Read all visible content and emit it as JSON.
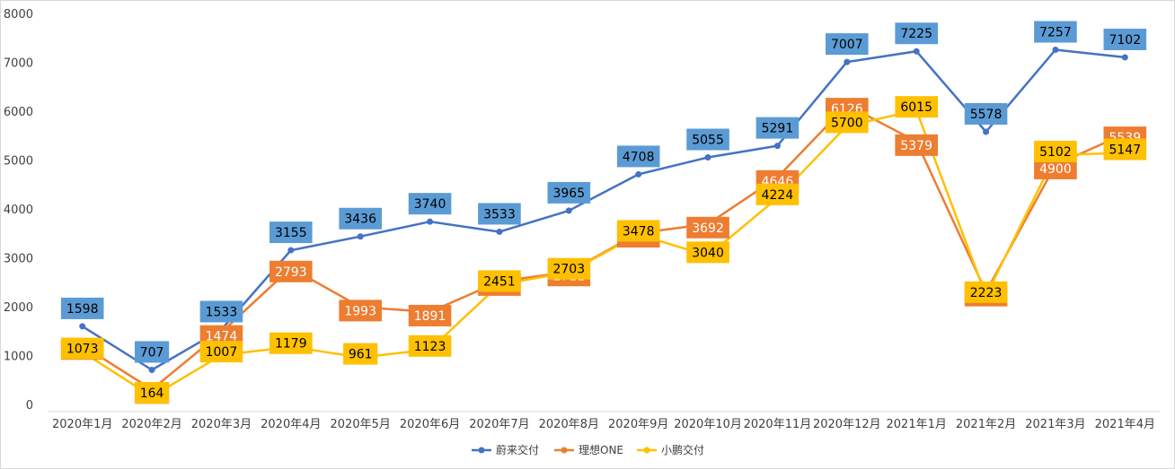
{
  "chart_data": {
    "type": "line",
    "title": "",
    "xlabel": "",
    "ylabel": "",
    "ylim": [
      0,
      8000
    ],
    "yticks": [
      0,
      1000,
      2000,
      3000,
      4000,
      5000,
      6000,
      7000,
      8000
    ],
    "grid": false,
    "legend_position": "bottom",
    "categories": [
      "2020年1月",
      "2020年2月",
      "2020年3月",
      "2020年4月",
      "2020年5月",
      "2020年6月",
      "2020年7月",
      "2020年8月",
      "2020年9月",
      "2020年10月",
      "2020年11月",
      "2020年12月",
      "2021年1月",
      "2021年2月",
      "2021年3月",
      "2021年4月"
    ],
    "series": [
      {
        "name": "蔚来交付",
        "color": "#4472c4",
        "label_color": "#5b9bd5",
        "label_text_color": "#000000",
        "values": [
          1598,
          707,
          1533,
          3155,
          3436,
          3740,
          3533,
          3965,
          4708,
          5055,
          5291,
          7007,
          7225,
          5578,
          7257,
          7102
        ]
      },
      {
        "name": "理想ONE",
        "color": "#ed7d31",
        "label_color": "#ed7d31",
        "label_text_color": "#ffffff",
        "values": [
          1207,
          307,
          1474,
          2793,
          1993,
          1891,
          2516,
          2711,
          3504,
          3692,
          4646,
          6126,
          5379,
          2300,
          4900,
          5539
        ]
      },
      {
        "name": "小鹏交付",
        "color": "#ffc000",
        "label_color": "#ffc000",
        "label_text_color": "#000000",
        "values": [
          1073,
          164,
          1007,
          1179,
          961,
          1123,
          2451,
          2703,
          3478,
          3040,
          4224,
          5700,
          6015,
          2223,
          5102,
          5147
        ]
      }
    ]
  }
}
